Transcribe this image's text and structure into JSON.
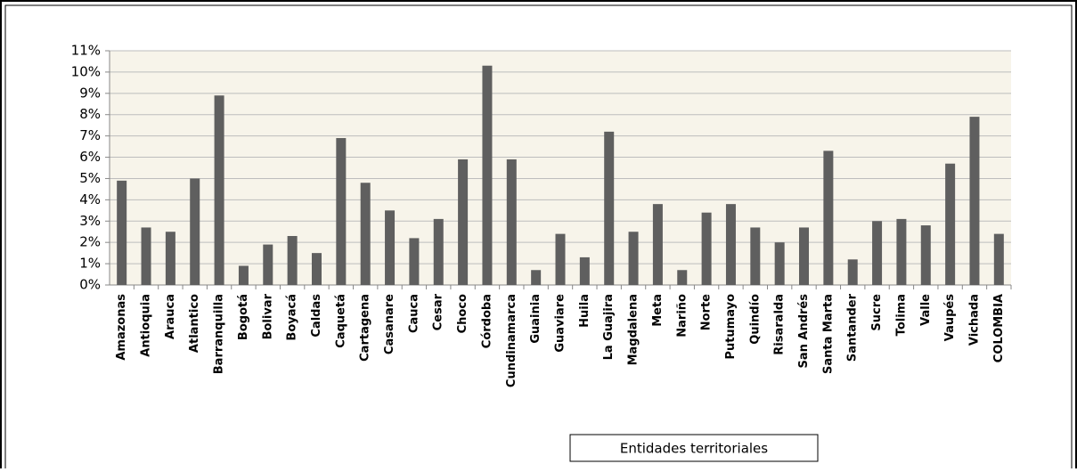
{
  "chart_data": {
    "type": "bar",
    "x_label": "Entidades territoriales",
    "categories": [
      "Amazonas",
      "Antioquia",
      "Arauca",
      "Atlantico",
      "Barranquilla",
      "Bogotá",
      "Bolivar",
      "Boyacá",
      "Caldas",
      "Caquetá",
      "Cartagena",
      "Casanare",
      "Cauca",
      "Cesar",
      "Choco",
      "Córdoba",
      "Cundinamarca",
      "Guainia",
      "Guaviare",
      "Huila",
      "La Guajira",
      "Magdalena",
      "Meta",
      "Nariño",
      "Norte",
      "Putumayo",
      "Quindío",
      "Risaralda",
      "San Andrés",
      "Santa Marta",
      "Santander",
      "Sucre",
      "Tolima",
      "Valle",
      "Vaupés",
      "Vichada",
      "COLOMBIA"
    ],
    "values": [
      4.9,
      2.7,
      2.5,
      5.0,
      8.9,
      0.9,
      1.9,
      2.3,
      1.5,
      6.9,
      4.8,
      3.5,
      2.2,
      3.1,
      5.9,
      10.3,
      5.9,
      0.7,
      2.4,
      1.3,
      7.2,
      2.5,
      3.8,
      0.7,
      3.4,
      3.8,
      2.7,
      2.0,
      2.7,
      6.3,
      1.2,
      3.0,
      3.1,
      2.8,
      5.7,
      7.9,
      2.4
    ],
    "color": "#5f5f5f",
    "ylim": [
      0,
      11
    ],
    "yticks": [
      {
        "value": 0,
        "label": "0%"
      },
      {
        "value": 1,
        "label": "1%"
      },
      {
        "value": 2,
        "label": "2%"
      },
      {
        "value": 3,
        "label": "3%"
      },
      {
        "value": 4,
        "label": "4%"
      },
      {
        "value": 5,
        "label": "5%"
      },
      {
        "value": 6,
        "label": "6%"
      },
      {
        "value": 7,
        "label": "7%"
      },
      {
        "value": 8,
        "label": "8%"
      },
      {
        "value": 9,
        "label": "9%"
      },
      {
        "value": 10,
        "label": "10%"
      },
      {
        "value": 11,
        "label": "11%"
      }
    ],
    "grid": true
  }
}
